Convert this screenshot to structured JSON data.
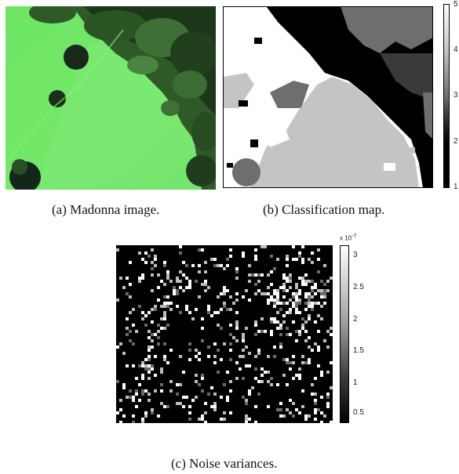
{
  "panels": {
    "a": {
      "caption": "(a)  Madonna image."
    },
    "b": {
      "caption": "(b)  Classification map.",
      "colorbar_ticks": [
        "5",
        "4",
        "3",
        "2",
        "1"
      ]
    },
    "c": {
      "caption": "(c)  Noise variances.",
      "colorbar_multiplier": "x 10",
      "colorbar_exponent": "-7",
      "colorbar_ticks": [
        "3",
        "2.5",
        "2",
        "1.5",
        "1",
        "0.5"
      ]
    }
  },
  "colors": {
    "vegetation_green": "#6de060",
    "dark_tree": "#1d3a1a",
    "class_levels": [
      "#000000",
      "#3a3a3a",
      "#6e6e6e",
      "#c4c4c4",
      "#ffffff"
    ]
  }
}
